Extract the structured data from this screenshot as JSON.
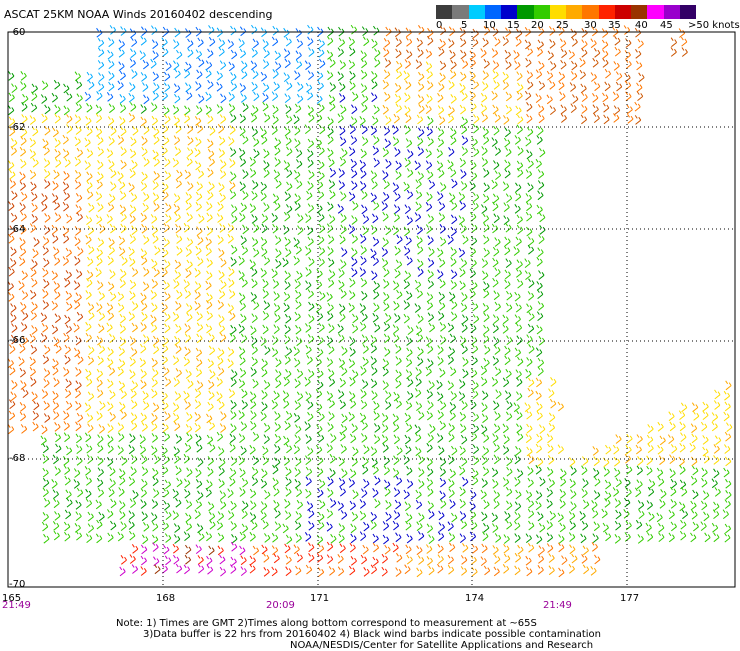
{
  "title": "ASCAT 25KM NOAA Winds 20160402 descending",
  "colorbar": {
    "labels": [
      "0",
      "5",
      "10",
      "15",
      "20",
      "25",
      "30",
      "35",
      "40",
      "45",
      ">50 knots"
    ],
    "colors": [
      "#3c3c3c",
      "#7a7a7a",
      "#00ccff",
      "#0066ff",
      "#0000cc",
      "#009900",
      "#33cc00",
      "#ffdd00",
      "#ffaa00",
      "#ff7700",
      "#ff2200",
      "#cc0000",
      "#993300",
      "#ff00ff",
      "#9900cc",
      "#330066"
    ]
  },
  "map": {
    "lon_min": 165,
    "lon_max": 179.3,
    "lat_min": -70,
    "lat_max": -60,
    "lat_ticks": [
      "-60",
      "-62",
      "-64",
      "-66",
      "-68",
      "-70"
    ],
    "lon_ticks": [
      "165",
      "168",
      "171",
      "174",
      "177"
    ],
    "time_labels": [
      "21:49",
      "20:09",
      "21:49"
    ]
  },
  "notes": {
    "line1": "Note: 1) Times are GMT 2)Times along bottom correspond to measurement at ~65S",
    "line2": "3)Data buffer is 22 hrs from 20160402 4) Black wind barbs indicate possible contamination",
    "line3": "NOAA/NESDIS/Center for Satellite Applications and Research"
  }
}
